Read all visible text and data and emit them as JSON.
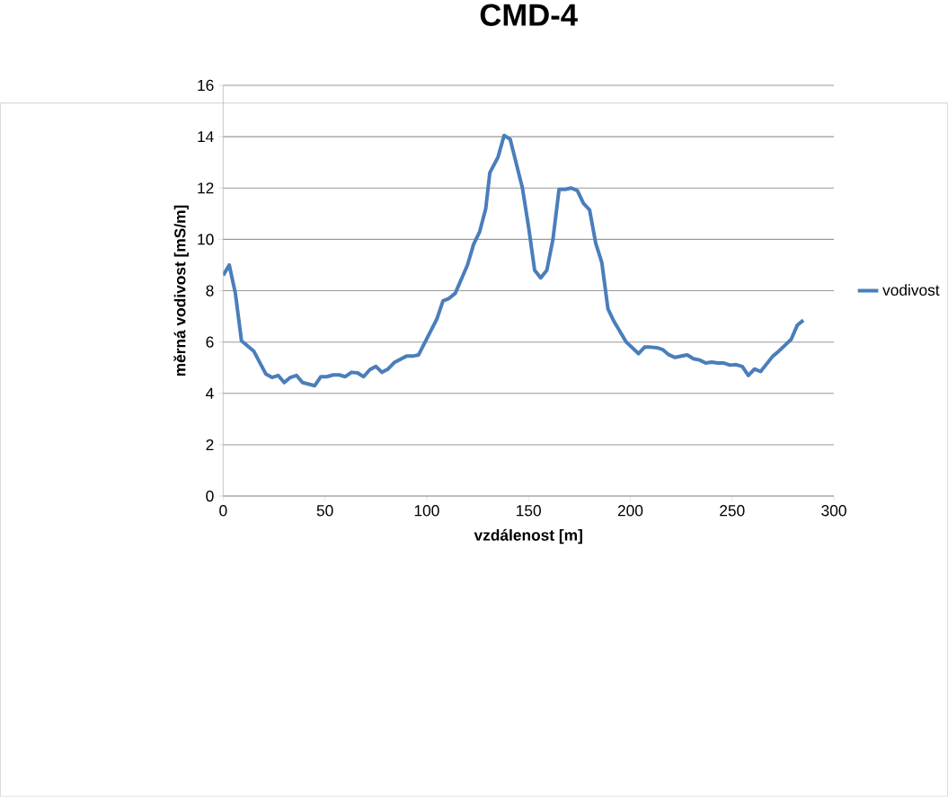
{
  "chart_data": {
    "type": "line",
    "title": "CMD-4",
    "xlabel": "vzdálenost [m]",
    "ylabel": "měrná vodivost [mS/m]",
    "x": [
      0,
      3,
      6,
      9,
      15,
      21,
      24,
      27,
      30,
      33,
      36,
      39,
      45,
      48,
      51,
      54,
      57,
      60,
      63,
      66,
      69,
      72,
      75,
      78,
      81,
      84,
      90,
      93,
      96,
      105,
      108,
      111,
      114,
      120,
      123,
      126,
      129,
      131,
      135,
      138,
      141,
      147,
      150,
      153,
      156,
      159,
      162,
      165,
      168,
      171,
      174,
      177,
      180,
      183,
      186,
      189,
      192,
      198,
      204,
      207,
      210,
      213,
      216,
      219,
      222,
      228,
      231,
      234,
      237,
      240,
      243,
      246,
      249,
      252,
      255,
      258,
      261,
      264,
      270,
      273,
      279,
      282,
      285
    ],
    "series": [
      {
        "name": "vodivost",
        "color": "#4a7ebb",
        "values": [
          8.6,
          9.0,
          7.9,
          6.05,
          5.65,
          4.75,
          4.62,
          4.7,
          4.42,
          4.62,
          4.7,
          4.42,
          4.3,
          4.65,
          4.65,
          4.72,
          4.72,
          4.65,
          4.82,
          4.8,
          4.65,
          4.92,
          5.05,
          4.82,
          4.95,
          5.2,
          5.45,
          5.45,
          5.5,
          6.9,
          7.6,
          7.7,
          7.9,
          9.0,
          9.8,
          10.3,
          11.2,
          12.6,
          13.2,
          14.05,
          13.9,
          12.0,
          10.5,
          8.8,
          8.5,
          8.8,
          10.0,
          11.95,
          11.95,
          12.0,
          11.9,
          11.4,
          11.15,
          9.85,
          9.1,
          7.3,
          6.8,
          6.0,
          5.55,
          5.8,
          5.8,
          5.78,
          5.7,
          5.5,
          5.4,
          5.5,
          5.35,
          5.3,
          5.18,
          5.22,
          5.18,
          5.18,
          5.1,
          5.12,
          5.05,
          4.7,
          4.95,
          4.85,
          5.45,
          5.65,
          6.1,
          6.65,
          6.85
        ]
      }
    ],
    "xlim": [
      0,
      300
    ],
    "xticks": [
      0,
      50,
      100,
      150,
      200,
      250,
      300
    ],
    "ylim": [
      0,
      16
    ],
    "yticks": [
      0,
      2,
      4,
      6,
      8,
      10,
      12,
      14,
      16
    ],
    "grid": "y",
    "legend": "right",
    "marker": "none",
    "line_style": "solid"
  }
}
